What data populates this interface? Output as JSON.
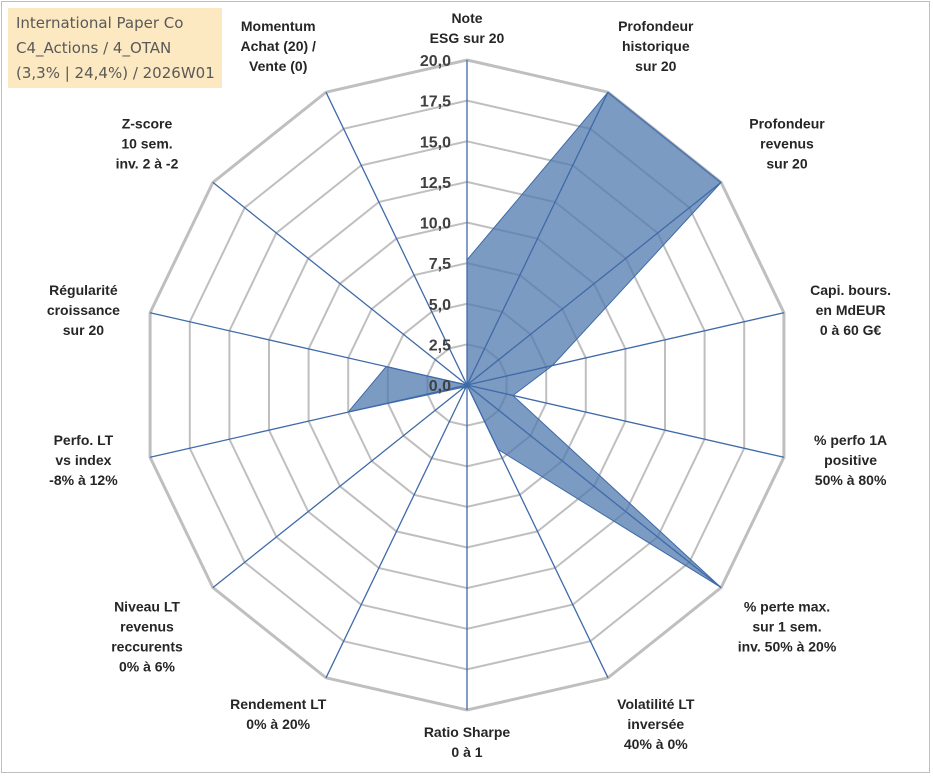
{
  "title_box": {
    "line1": "International Paper Co",
    "line2": "C4_Actions / 4_OTAN",
    "line3": "(3,3% | 24,4%) / 2026W01"
  },
  "chart_data": {
    "type": "radar",
    "r_max": 20,
    "r_ticks": [
      "0,0",
      "2,5",
      "5,0",
      "7,5",
      "10,0",
      "12,5",
      "15,0",
      "17,5",
      "20,0"
    ],
    "grid": true,
    "axes": [
      [
        "Note",
        "ESG sur 20"
      ],
      [
        "Profondeur",
        "historique",
        "sur 20"
      ],
      [
        "Profondeur",
        "revenus",
        "sur 20"
      ],
      [
        "Capi. bours.",
        "en MdEUR",
        "0 à 60 G€"
      ],
      [
        "% perfo 1A",
        "positive",
        "50% à 80%"
      ],
      [
        "% perte max.",
        "sur 1 sem.",
        "inv. 50% à 20%"
      ],
      [
        "Volatilité LT",
        "inversée",
        "40% à 0%"
      ],
      [
        "Ratio Sharpe",
        "0 à 1"
      ],
      [
        "Rendement LT",
        "0% à 20%"
      ],
      [
        "Niveau LT",
        "revenus",
        "reccurents",
        "0% à 6%"
      ],
      [
        "Perfo. LT",
        "vs index",
        "-8% à 12%"
      ],
      [
        "Régularité",
        "croissance",
        "sur 20"
      ],
      [
        "Z-score",
        "10 sem.",
        "inv. 2 à -2"
      ],
      [
        "Momentum",
        "Achat (20) /",
        "Vente (0)"
      ]
    ],
    "series": [
      {
        "values": [
          7.7,
          20,
          20,
          5.4,
          2.9,
          20,
          4.4,
          0,
          0.3,
          0.2,
          7.5,
          5.1,
          0,
          0
        ]
      }
    ],
    "colors": {
      "fill": "#4f7aaf",
      "stroke": "#3f6aa8",
      "grid": "#bfbfbf",
      "axis": "#3f6aa8"
    }
  }
}
